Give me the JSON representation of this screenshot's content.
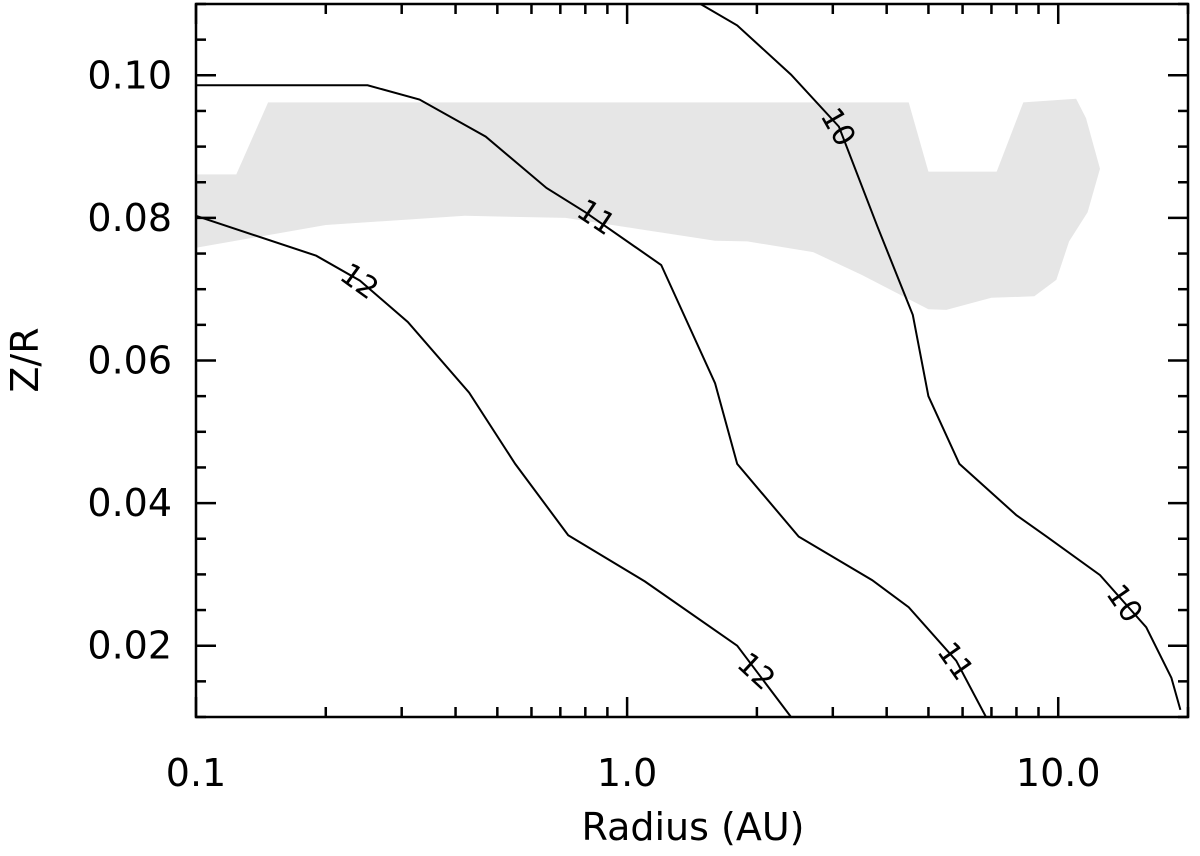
{
  "chart_data": {
    "type": "line",
    "title": "",
    "xlabel": "Radius (AU)",
    "ylabel": "Z/R",
    "x_scale": "log",
    "xlim": [
      0.1,
      20
    ],
    "ylim": [
      0.01,
      0.11
    ],
    "xtick_labels": [
      {
        "value": 0.1,
        "label": "0.1"
      },
      {
        "value": 1.0,
        "label": "1.0"
      },
      {
        "value": 10.0,
        "label": "10.0"
      }
    ],
    "ytick_labels": [
      {
        "value": 0.02,
        "label": "0.02"
      },
      {
        "value": 0.04,
        "label": "0.04"
      },
      {
        "value": 0.06,
        "label": "0.06"
      },
      {
        "value": 0.08,
        "label": "0.08"
      },
      {
        "value": 0.1,
        "label": "0.10"
      }
    ],
    "grid": false,
    "colors": {
      "line": "#000000",
      "shade": "#e6e6e6"
    },
    "shaded_region": [
      [
        0.1,
        0.0861
      ],
      [
        0.124,
        0.0861
      ],
      [
        0.147,
        0.0962
      ],
      [
        0.22,
        0.0962
      ],
      [
        1.0,
        0.0962
      ],
      [
        4.5,
        0.0962
      ],
      [
        5.0,
        0.0865
      ],
      [
        7.2,
        0.0865
      ],
      [
        8.3,
        0.0962
      ],
      [
        11.0,
        0.0967
      ],
      [
        11.6,
        0.094
      ],
      [
        12.5,
        0.0869
      ],
      [
        11.7,
        0.0808
      ],
      [
        10.6,
        0.0767
      ],
      [
        9.9,
        0.0713
      ],
      [
        8.8,
        0.069
      ],
      [
        7.0,
        0.0688
      ],
      [
        5.5,
        0.0671
      ],
      [
        5.0,
        0.0672
      ],
      [
        3.5,
        0.072
      ],
      [
        2.7,
        0.0752
      ],
      [
        1.9,
        0.0767
      ],
      [
        1.6,
        0.0768
      ],
      [
        0.72,
        0.08
      ],
      [
        0.42,
        0.0803
      ],
      [
        0.2,
        0.079
      ],
      [
        0.1,
        0.0758
      ]
    ],
    "contours": [
      {
        "level": "10",
        "points": [
          [
            1.48,
            0.11
          ],
          [
            1.8,
            0.107
          ],
          [
            2.4,
            0.1001
          ],
          [
            3.1,
            0.0928
          ],
          [
            3.8,
            0.0789
          ],
          [
            4.6,
            0.0664
          ],
          [
            5.0,
            0.055
          ],
          [
            5.9,
            0.0455
          ],
          [
            8.0,
            0.0383
          ],
          [
            9.4,
            0.0353
          ],
          [
            12.5,
            0.0299
          ],
          [
            16.0,
            0.0226
          ],
          [
            18.3,
            0.0155
          ],
          [
            19.2,
            0.011
          ]
        ],
        "labels": [
          {
            "x": 3.1,
            "y": 0.0928,
            "text": "10"
          },
          {
            "x": 14.3,
            "y": 0.026,
            "text": "10"
          }
        ]
      },
      {
        "level": "11",
        "points": [
          [
            0.1,
            0.0986
          ],
          [
            0.25,
            0.0986
          ],
          [
            0.33,
            0.0966
          ],
          [
            0.47,
            0.0914
          ],
          [
            0.65,
            0.0842
          ],
          [
            0.8,
            0.0808
          ],
          [
            1.2,
            0.0734
          ],
          [
            1.6,
            0.0568
          ],
          [
            1.8,
            0.0455
          ],
          [
            2.5,
            0.0353
          ],
          [
            3.7,
            0.0292
          ],
          [
            4.5,
            0.0254
          ],
          [
            5.8,
            0.0179
          ],
          [
            6.8,
            0.01
          ]
        ],
        "labels": [
          {
            "x": 0.85,
            "y": 0.0802,
            "text": "11"
          },
          {
            "x": 5.8,
            "y": 0.0179,
            "text": "11"
          }
        ]
      },
      {
        "level": "12",
        "points": [
          [
            0.1,
            0.0803
          ],
          [
            0.19,
            0.0747
          ],
          [
            0.24,
            0.0712
          ],
          [
            0.31,
            0.0654
          ],
          [
            0.43,
            0.0555
          ],
          [
            0.55,
            0.0455
          ],
          [
            0.73,
            0.0355
          ],
          [
            1.1,
            0.029
          ],
          [
            1.8,
            0.02
          ],
          [
            2.4,
            0.01
          ]
        ],
        "labels": [
          {
            "x": 0.24,
            "y": 0.0712,
            "text": "12"
          },
          {
            "x": 2.0,
            "y": 0.0165,
            "text": "12"
          }
        ]
      }
    ]
  }
}
